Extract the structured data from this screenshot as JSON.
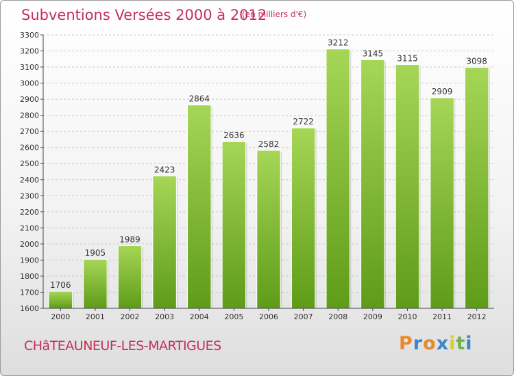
{
  "title": "Subventions Versées 2000 à 2012",
  "subtitle": "(en milliers d'€)",
  "city": "CHâTEAUNEUF-LES-MARTIGUES",
  "brand": "Proxiti",
  "colors": {
    "title": "#c3305a",
    "bar_top": "#a6d656",
    "bar_bottom": "#5e9c18",
    "axis": "#444444",
    "brand_letters": [
      "#e8882a",
      "#3a86c8",
      "#e8882a",
      "#3a86c8",
      "#d4cf2a",
      "#6bb34a",
      "#3a86c8"
    ]
  },
  "chart_data": {
    "type": "bar",
    "categories": [
      "2000",
      "2001",
      "2002",
      "2003",
      "2004",
      "2005",
      "2006",
      "2007",
      "2008",
      "2009",
      "2010",
      "2011",
      "2012"
    ],
    "values": [
      1706,
      1905,
      1989,
      2423,
      2864,
      2636,
      2582,
      2722,
      3212,
      3145,
      3115,
      2909,
      3098
    ],
    "ylim": [
      1600,
      3300
    ],
    "yticks": [
      1600,
      1700,
      1800,
      1900,
      2000,
      2100,
      2200,
      2300,
      2400,
      2500,
      2600,
      2700,
      2800,
      2900,
      3000,
      3100,
      3200,
      3300
    ],
    "grid": "horizontal dashed",
    "data_labels": true
  }
}
